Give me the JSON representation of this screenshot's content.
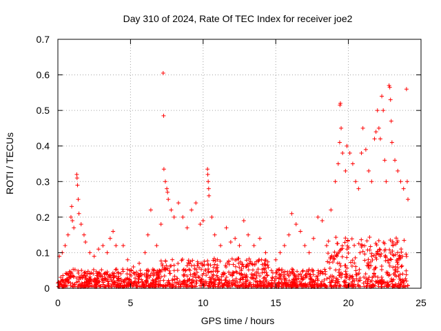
{
  "chart_data": {
    "type": "scatter",
    "title": "Day 310 of 2024, Rate Of TEC Index for receiver joe2",
    "xlabel": "GPS time / hours",
    "ylabel": "ROTI / TECUs",
    "xlim": [
      0,
      25
    ],
    "ylim": [
      0,
      0.7
    ],
    "xticks": [
      0,
      5,
      10,
      15,
      20,
      25
    ],
    "yticks": [
      0,
      0.1,
      0.2,
      0.3,
      0.4,
      0.5,
      0.6,
      0.7
    ],
    "xtick_labels": [
      "0",
      "5",
      "10",
      "15",
      "20",
      "25"
    ],
    "ytick_labels": [
      "0",
      "0.1",
      "0.2",
      "0.3",
      "0.4",
      "0.5",
      "0.6",
      "0.7"
    ],
    "grid": true,
    "marker": "+",
    "series": [
      {
        "name": "joe2",
        "color": "#ff0000",
        "points": [
          [
            0.1,
            0.09
          ],
          [
            0.3,
            0.1
          ],
          [
            0.5,
            0.12
          ],
          [
            0.7,
            0.15
          ],
          [
            0.9,
            0.2
          ],
          [
            0.95,
            0.23
          ],
          [
            1.0,
            0.19
          ],
          [
            1.1,
            0.17
          ],
          [
            1.3,
            0.32
          ],
          [
            1.32,
            0.31
          ],
          [
            1.35,
            0.29
          ],
          [
            1.4,
            0.25
          ],
          [
            1.45,
            0.21
          ],
          [
            1.6,
            0.18
          ],
          [
            1.8,
            0.15
          ],
          [
            1.9,
            0.13
          ],
          [
            2.2,
            0.1
          ],
          [
            2.5,
            0.09
          ],
          [
            2.8,
            0.11
          ],
          [
            3.1,
            0.12
          ],
          [
            3.4,
            0.1
          ],
          [
            3.6,
            0.14
          ],
          [
            3.8,
            0.16
          ],
          [
            4.0,
            0.12
          ],
          [
            4.5,
            0.12
          ],
          [
            4.8,
            0.08
          ],
          [
            5.2,
            0.06
          ],
          [
            5.6,
            0.07
          ],
          [
            6.0,
            0.1
          ],
          [
            6.2,
            0.15
          ],
          [
            6.4,
            0.22
          ],
          [
            6.8,
            0.12
          ],
          [
            7.1,
            0.18
          ],
          [
            7.25,
            0.605
          ],
          [
            7.28,
            0.485
          ],
          [
            7.3,
            0.335
          ],
          [
            7.4,
            0.3
          ],
          [
            7.5,
            0.28
          ],
          [
            7.55,
            0.27
          ],
          [
            7.6,
            0.25
          ],
          [
            7.8,
            0.22
          ],
          [
            8.0,
            0.2
          ],
          [
            8.3,
            0.24
          ],
          [
            8.6,
            0.2
          ],
          [
            8.9,
            0.17
          ],
          [
            9.2,
            0.22
          ],
          [
            9.5,
            0.24
          ],
          [
            9.8,
            0.18
          ],
          [
            10.0,
            0.19
          ],
          [
            10.3,
            0.335
          ],
          [
            10.32,
            0.32
          ],
          [
            10.35,
            0.3
          ],
          [
            10.38,
            0.28
          ],
          [
            10.4,
            0.26
          ],
          [
            10.6,
            0.2
          ],
          [
            10.8,
            0.15
          ],
          [
            11.2,
            0.12
          ],
          [
            11.6,
            0.17
          ],
          [
            11.9,
            0.13
          ],
          [
            12.2,
            0.14
          ],
          [
            12.5,
            0.12
          ],
          [
            12.8,
            0.19
          ],
          [
            13.1,
            0.15
          ],
          [
            13.5,
            0.12
          ],
          [
            13.9,
            0.14
          ],
          [
            14.3,
            0.1
          ],
          [
            14.7,
            0.05
          ],
          [
            15.0,
            0.08
          ],
          [
            15.3,
            0.1
          ],
          [
            15.6,
            0.12
          ],
          [
            15.9,
            0.15
          ],
          [
            16.1,
            0.21
          ],
          [
            16.4,
            0.18
          ],
          [
            16.7,
            0.16
          ],
          [
            17.0,
            0.12
          ],
          [
            17.3,
            0.1
          ],
          [
            17.6,
            0.14
          ],
          [
            17.9,
            0.2
          ],
          [
            18.2,
            0.19
          ],
          [
            18.5,
            0.12
          ],
          [
            18.8,
            0.22
          ],
          [
            19.1,
            0.3
          ],
          [
            19.3,
            0.35
          ],
          [
            19.4,
            0.41
          ],
          [
            19.42,
            0.515
          ],
          [
            19.45,
            0.52
          ],
          [
            19.5,
            0.45
          ],
          [
            19.6,
            0.38
          ],
          [
            19.8,
            0.33
          ],
          [
            19.9,
            0.4
          ],
          [
            20.1,
            0.38
          ],
          [
            20.3,
            0.35
          ],
          [
            20.5,
            0.3
          ],
          [
            20.7,
            0.28
          ],
          [
            20.9,
            0.38
          ],
          [
            21.0,
            0.45
          ],
          [
            21.2,
            0.39
          ],
          [
            21.4,
            0.33
          ],
          [
            21.6,
            0.3
          ],
          [
            21.8,
            0.42
          ],
          [
            21.9,
            0.44
          ],
          [
            22.0,
            0.5
          ],
          [
            22.1,
            0.45
          ],
          [
            22.2,
            0.42
          ],
          [
            22.3,
            0.54
          ],
          [
            22.4,
            0.5
          ],
          [
            22.5,
            0.36
          ],
          [
            22.6,
            0.3
          ],
          [
            22.8,
            0.57
          ],
          [
            22.85,
            0.565
          ],
          [
            22.9,
            0.53
          ],
          [
            22.95,
            0.47
          ],
          [
            23.0,
            0.41
          ],
          [
            23.2,
            0.36
          ],
          [
            23.4,
            0.33
          ],
          [
            23.6,
            0.3
          ],
          [
            23.8,
            0.28
          ],
          [
            24.0,
            0.56
          ],
          [
            24.05,
            0.3
          ],
          [
            24.1,
            0.25
          ]
        ]
      }
    ]
  }
}
